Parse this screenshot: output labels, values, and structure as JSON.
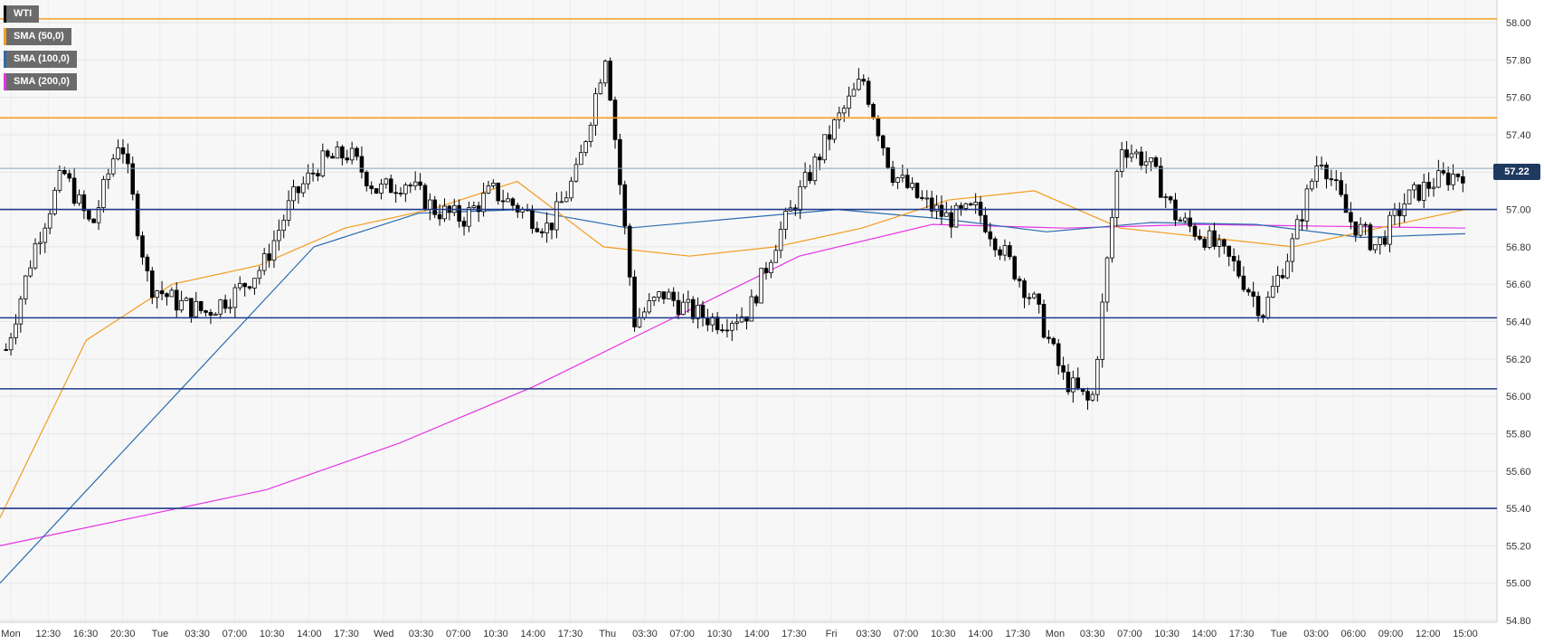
{
  "legend": [
    {
      "label": "WTI",
      "color": "#000000"
    },
    {
      "label": "SMA (50,0)",
      "color": "#f39c1f"
    },
    {
      "label": "SMA (100,0)",
      "color": "#2b6cb0"
    },
    {
      "label": "SMA (200,0)",
      "color": "#e633e6"
    }
  ],
  "last_price": "57.22",
  "colors": {
    "sma50": "#f39c1f",
    "sma100": "#2b6cb0",
    "sma200": "#e633e6",
    "level": "#1f3a8a",
    "resistance": "#f39c1f"
  },
  "chart_data": {
    "type": "candlestick",
    "series_name": "WTI",
    "ylim": [
      54.8,
      58.1
    ],
    "y_ticks": [
      "58.00",
      "57.80",
      "57.60",
      "57.40",
      "57.20",
      "57.00",
      "56.80",
      "56.60",
      "56.40",
      "56.20",
      "56.00",
      "55.80",
      "55.60",
      "55.40",
      "55.20",
      "55.00",
      "54.80"
    ],
    "x_ticks": [
      "Mon",
      "12:30",
      "16:30",
      "20:30",
      "Tue",
      "03:30",
      "07:00",
      "10:30",
      "14:00",
      "17:30",
      "Wed",
      "03:30",
      "07:00",
      "10:30",
      "14:00",
      "17:30",
      "Thu",
      "03:30",
      "07:00",
      "10:30",
      "14:00",
      "17:30",
      "Fri",
      "03:30",
      "07:00",
      "10:30",
      "14:00",
      "17:30",
      "Mon",
      "03:30",
      "07:00",
      "10:30",
      "14:00",
      "17:30",
      "Tue",
      "03:00",
      "06:00",
      "09:00",
      "12:00",
      "15:00"
    ],
    "horizontal_levels_orange": [
      58.02,
      57.49
    ],
    "horizontal_levels_blue": [
      57.0,
      56.42,
      56.04,
      55.4
    ],
    "last_value": 57.22,
    "close_path": [
      56.25,
      56.8,
      57.2,
      56.9,
      57.4,
      56.6,
      56.5,
      56.45,
      56.55,
      56.7,
      57.05,
      57.25,
      57.3,
      57.1,
      57.15,
      57.0,
      56.95,
      57.1,
      57.0,
      56.9,
      57.2,
      57.85,
      56.4,
      56.55,
      56.45,
      56.4,
      56.45,
      56.85,
      57.15,
      57.45,
      57.7,
      57.2,
      57.05,
      56.95,
      57.0,
      56.75,
      56.5,
      56.1,
      55.95,
      57.35,
      57.25,
      56.95,
      56.85,
      56.7,
      56.45,
      56.8,
      57.3,
      56.95,
      56.8,
      57.05,
      57.15,
      57.2
    ]
  },
  "sma50": [
    55.35,
    56.3,
    56.6,
    56.7,
    56.9,
    57.0,
    57.15,
    56.8,
    56.75,
    56.8,
    56.9,
    57.05,
    57.1,
    56.9,
    56.85,
    56.8,
    56.9,
    57.0
  ],
  "sma100": [
    55.0,
    55.6,
    56.2,
    56.8,
    56.98,
    57.0,
    56.9,
    56.95,
    57.0,
    56.95,
    56.88,
    56.93,
    56.92,
    56.85,
    56.87
  ],
  "sma200": [
    55.2,
    55.35,
    55.5,
    55.75,
    56.05,
    56.4,
    56.75,
    56.92,
    56.9,
    56.92,
    56.91,
    56.9
  ]
}
